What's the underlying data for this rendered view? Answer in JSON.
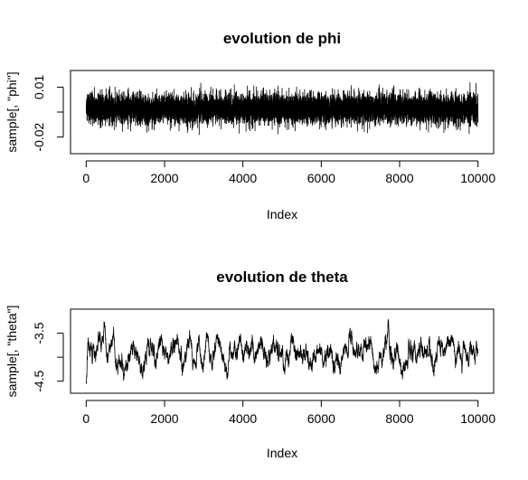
{
  "chart_data": [
    {
      "type": "line",
      "title": "evolution de phi",
      "xlabel": "Index",
      "ylabel": "sample[, \"phi\"]",
      "xlim": [
        0,
        10000
      ],
      "ylim": [
        -0.03,
        0.02
      ],
      "xticks": [
        0,
        2000,
        4000,
        6000,
        8000,
        10000
      ],
      "yticks": [
        -0.02,
        0.01
      ],
      "ytick_labels": [
        "-0.02",
        "0.01"
      ],
      "series": [
        {
          "n": 10000,
          "mean": -0.003,
          "sd": 0.0045,
          "min": -0.027,
          "max": 0.016,
          "style": "white-noise"
        }
      ]
    },
    {
      "type": "line",
      "title": "evolution de theta",
      "xlabel": "Index",
      "ylabel": "sample[, \"theta\"]",
      "xlim": [
        0,
        10000
      ],
      "ylim": [
        -4.75,
        -3.0
      ],
      "xticks": [
        0,
        2000,
        4000,
        6000,
        8000,
        10000
      ],
      "yticks": [
        -4.5,
        -3.5
      ],
      "ytick_labels": [
        "-4.5",
        "-3.5"
      ],
      "series": [
        {
          "n": 10000,
          "mean": -3.9,
          "sd": 0.2,
          "min": -4.7,
          "max": -3.1,
          "style": "autocorrelated",
          "start": -4.5
        }
      ]
    }
  ]
}
